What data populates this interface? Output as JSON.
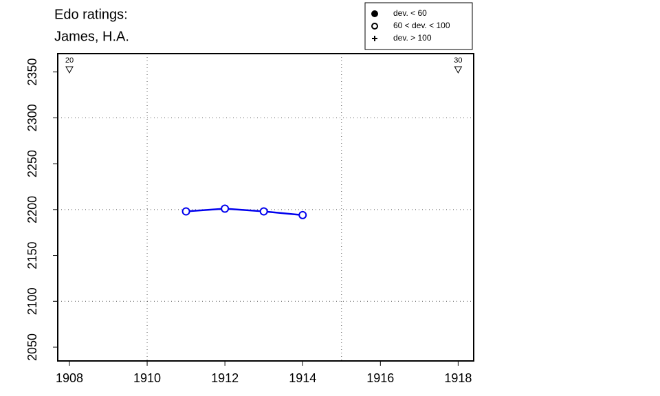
{
  "chart_data": {
    "type": "line",
    "title": [
      "Edo ratings:",
      "James, H.A."
    ],
    "x": [
      1911,
      1912,
      1913,
      1914
    ],
    "values": [
      2198,
      2201,
      2198,
      2194
    ],
    "color": "#0000ee",
    "marker": "open-circle",
    "xlim": [
      1907.7,
      1918.4
    ],
    "ylim": [
      2035,
      2370
    ],
    "xticks": [
      1908,
      1910,
      1912,
      1914,
      1916,
      1918
    ],
    "yticks": [
      2050,
      2100,
      2150,
      2200,
      2250,
      2300,
      2350
    ],
    "xgrid": [
      1910,
      1915
    ],
    "ygrid": [
      2100,
      2200,
      2300
    ],
    "annotations": [
      {
        "x": 1908,
        "label": "20"
      },
      {
        "x": 1918,
        "label": "30"
      }
    ],
    "legend": [
      {
        "label": "dev. < 60",
        "marker": "filled-circle"
      },
      {
        "label": "60 < dev. < 100",
        "marker": "open-circle"
      },
      {
        "label": "dev. > 100",
        "marker": "plus"
      }
    ]
  }
}
